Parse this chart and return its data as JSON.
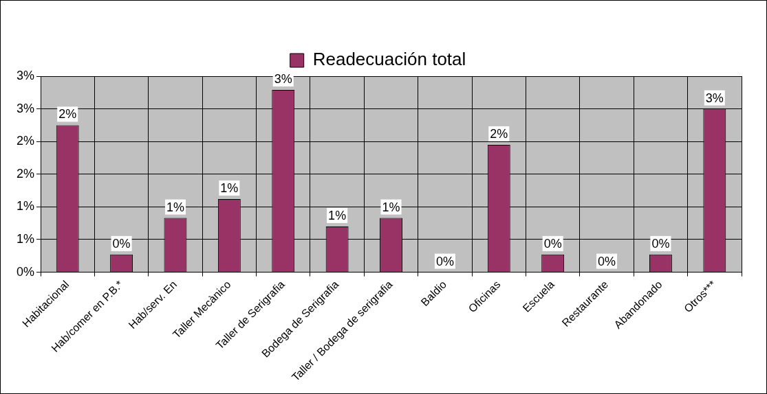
{
  "chart_data": {
    "type": "bar",
    "categories": [
      "Habitacional",
      "Hab/comer en P.B.*",
      "Hab/serv. En",
      "Taller Mecànico",
      "Taller de Serigrafia",
      "Bodega de Serigrafia",
      "Taller / Bodega de serigrafia",
      "Baldio",
      "Oficinas",
      "Escuela",
      "Restaurante",
      "Abandonado",
      "Otros***"
    ],
    "series": [
      {
        "name": "Readecuación total",
        "color": "#993366",
        "values": [
          2.25,
          0.27,
          0.83,
          1.12,
          2.79,
          0.7,
          0.83,
          0,
          1.95,
          0.27,
          0,
          0.27,
          2.5
        ],
        "value_labels": [
          "2%",
          "0%",
          "1%",
          "1%",
          "3%",
          "1%",
          "1%",
          "0%",
          "2%",
          "0%",
          "0%",
          "0%",
          "3%"
        ]
      }
    ],
    "ylim": [
      0,
      3
    ],
    "yticks": [
      {
        "value": 0,
        "label": "0%"
      },
      {
        "value": 0.5,
        "label": "1%"
      },
      {
        "value": 1,
        "label": "1%"
      },
      {
        "value": 1.5,
        "label": "2%"
      },
      {
        "value": 2,
        "label": "2%"
      },
      {
        "value": 2.5,
        "label": "3%"
      },
      {
        "value": 3,
        "label": "3%"
      }
    ],
    "grid": true,
    "legend": "top"
  }
}
